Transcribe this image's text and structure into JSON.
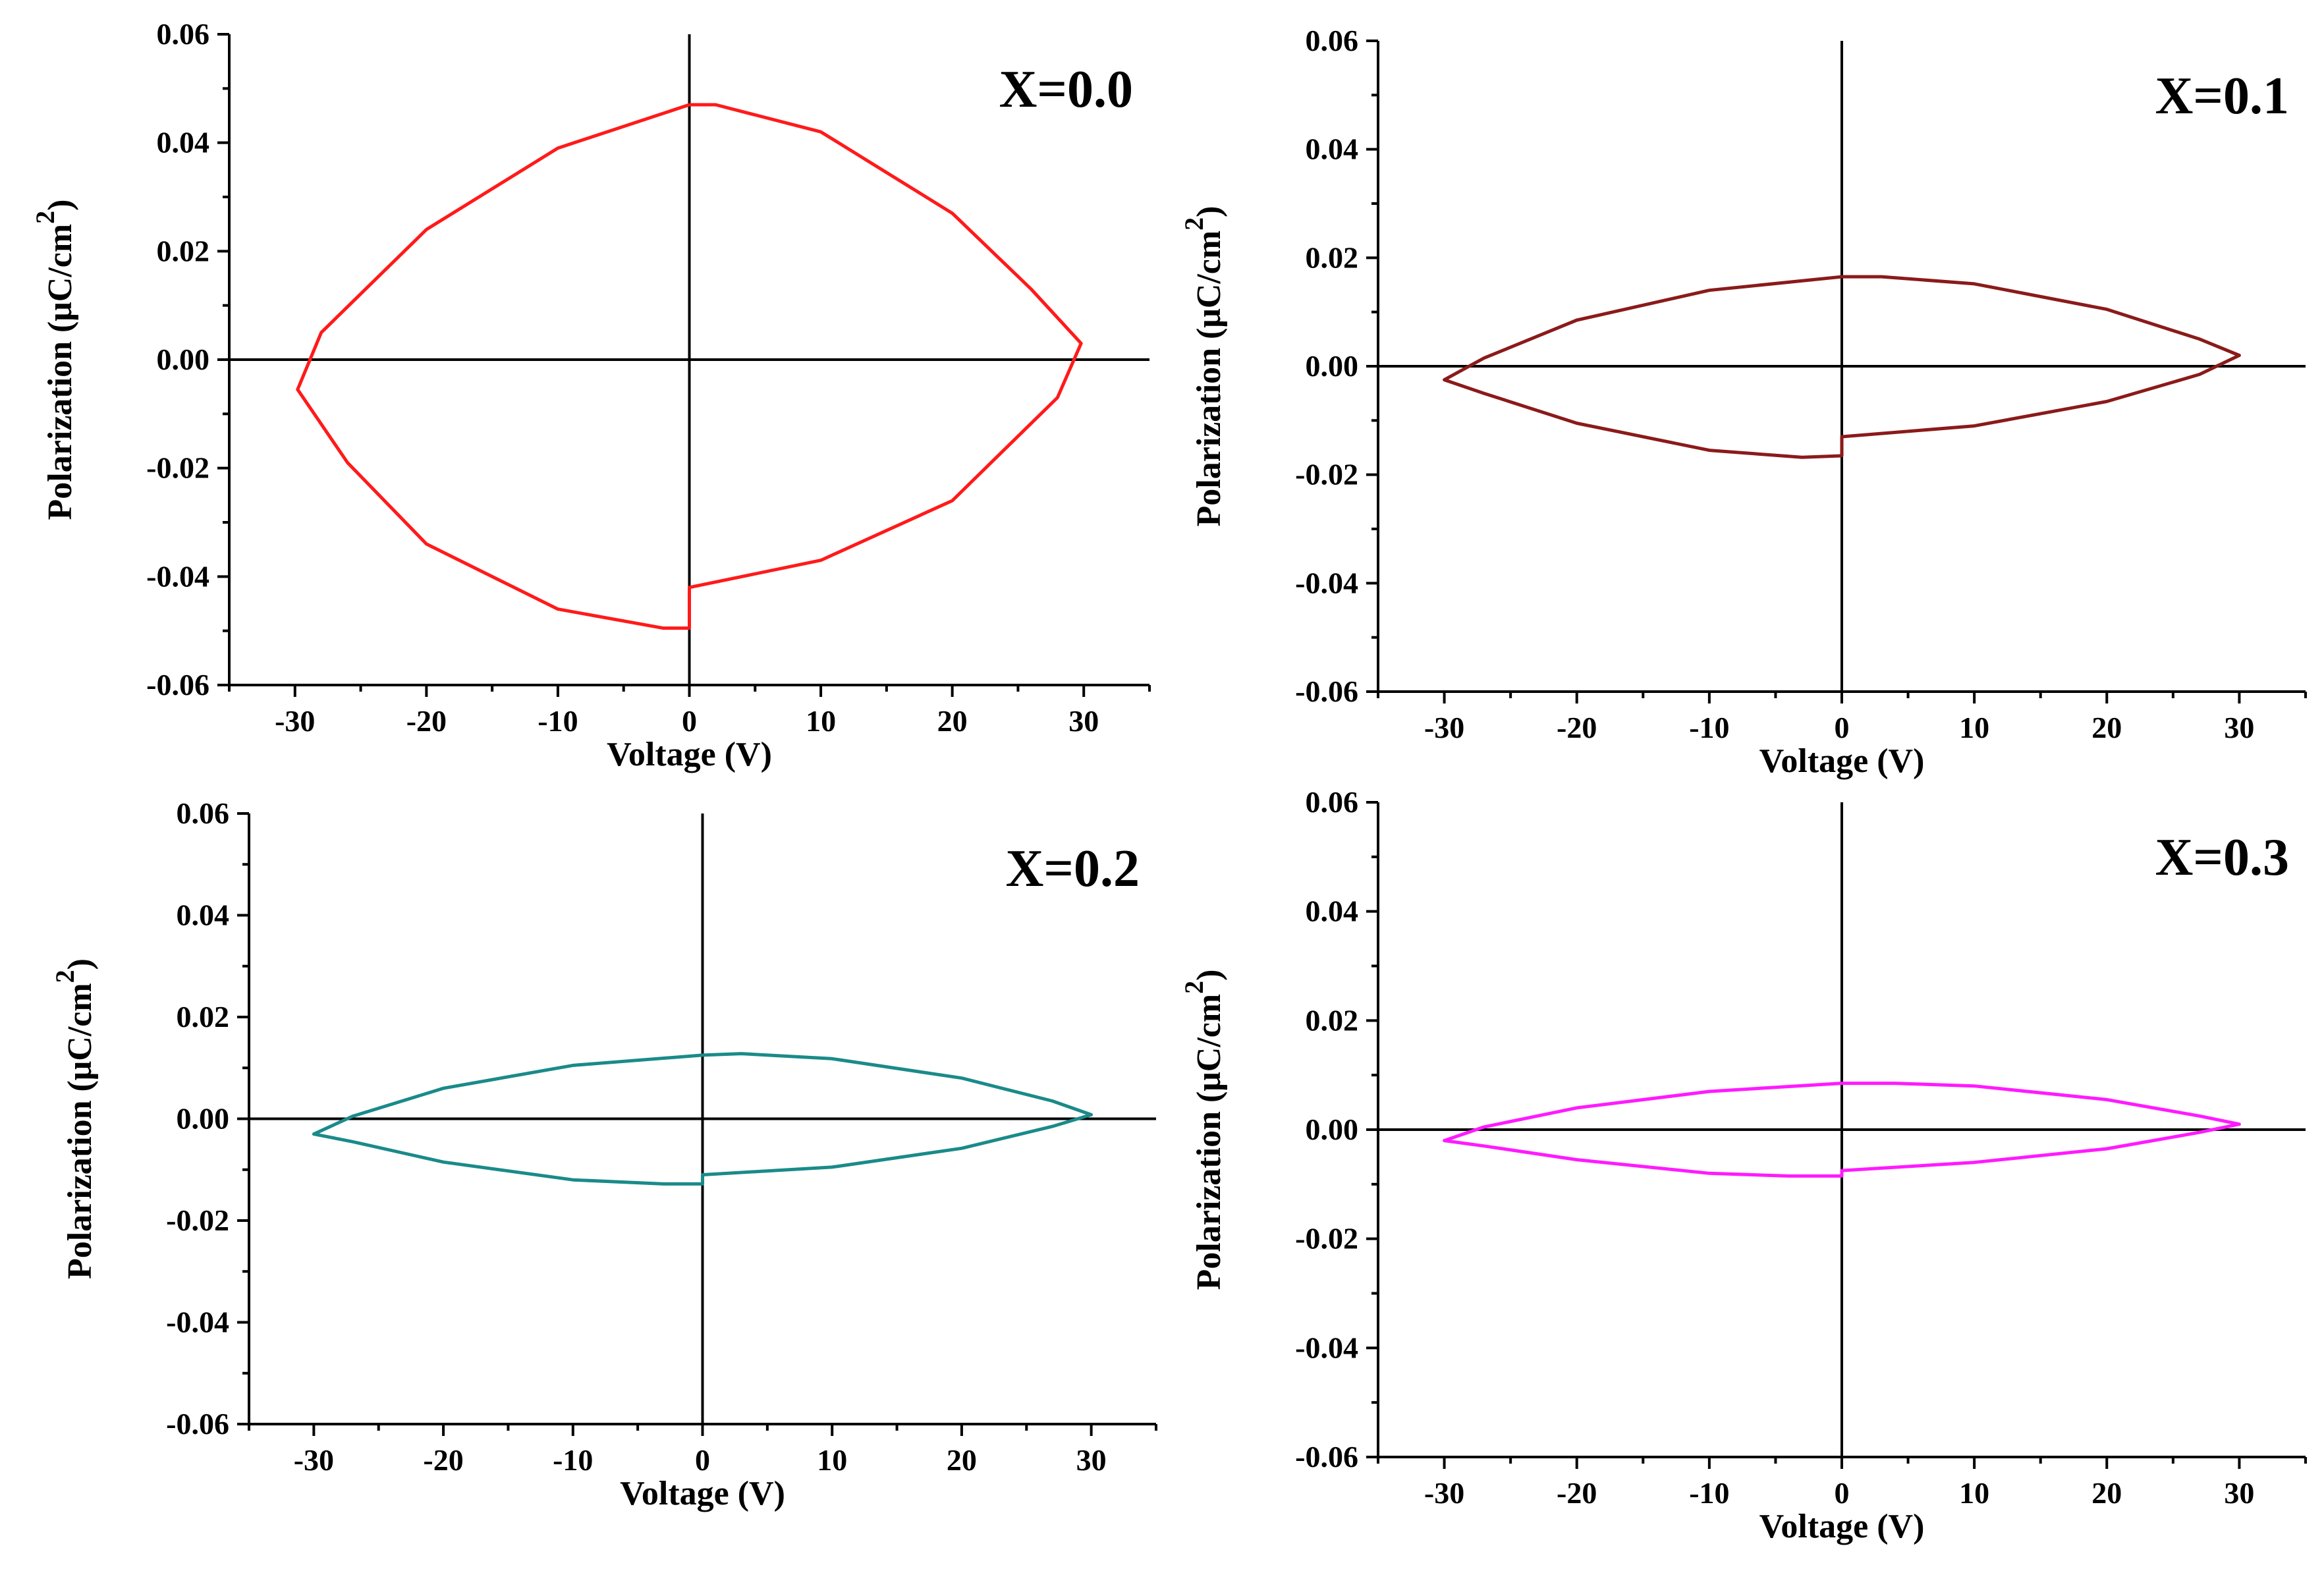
{
  "chart_data": [
    {
      "type": "line",
      "panel_label": "X=0.0",
      "xlabel": "Voltage (V)",
      "ylabel": "Polarization (μC/cm",
      "ylabel_sup": "2",
      "ylabel_close": ")",
      "xlim": [
        -35,
        35
      ],
      "ylim": [
        -0.06,
        0.06
      ],
      "x_ticks": [
        -30,
        -20,
        -10,
        0,
        10,
        20,
        30
      ],
      "x_tick_labels": [
        "-30",
        "-20",
        "-10",
        "0",
        "10",
        "20",
        "30"
      ],
      "y_ticks": [
        0.06,
        0.04,
        0.02,
        0.0,
        -0.02,
        -0.04,
        -0.06
      ],
      "y_tick_labels": [
        "0.06",
        "0.04",
        "0.02",
        "0.00",
        "-0.02",
        "-0.04",
        "-0.06"
      ],
      "color": "#ff1a1a",
      "series": [
        {
          "name": "loop",
          "x": [
            0,
            2,
            10,
            20,
            26,
            29.8,
            28,
            20,
            10,
            0,
            0,
            -2,
            -10,
            -20,
            -26,
            -29.8,
            -28,
            -20,
            -10,
            0
          ],
          "y": [
            0.047,
            0.047,
            0.042,
            0.027,
            0.013,
            0.003,
            -0.007,
            -0.026,
            -0.037,
            -0.042,
            -0.0495,
            -0.0495,
            -0.046,
            -0.034,
            -0.019,
            -0.0055,
            0.005,
            0.024,
            0.039,
            0.047
          ]
        }
      ]
    },
    {
      "type": "line",
      "panel_label": "X=0.1",
      "xlabel": "Voltage (V)",
      "ylabel": "Polarization (μC/cm",
      "ylabel_sup": "2",
      "ylabel_close": ")",
      "xlim": [
        -35,
        35
      ],
      "ylim": [
        -0.06,
        0.06
      ],
      "x_ticks": [
        -30,
        -20,
        -10,
        0,
        10,
        20,
        30
      ],
      "x_tick_labels": [
        "-30",
        "-20",
        "-10",
        "0",
        "10",
        "20",
        "30"
      ],
      "y_ticks": [
        0.06,
        0.04,
        0.02,
        0.0,
        -0.02,
        -0.04,
        -0.06
      ],
      "y_tick_labels": [
        "0.06",
        "0.04",
        "0.02",
        "0.00",
        "-0.02",
        "-0.04",
        "-0.06"
      ],
      "color": "#8b1a1a",
      "series": [
        {
          "name": "loop",
          "x": [
            0,
            3,
            10,
            20,
            27,
            30,
            27,
            20,
            10,
            0,
            0,
            -3,
            -10,
            -20,
            -27,
            -30,
            -27,
            -20,
            -10,
            0
          ],
          "y": [
            0.0165,
            0.0165,
            0.0152,
            0.0105,
            0.005,
            0.002,
            -0.0015,
            -0.0065,
            -0.011,
            -0.013,
            -0.0165,
            -0.0168,
            -0.0155,
            -0.0105,
            -0.005,
            -0.0025,
            0.0015,
            0.0085,
            0.014,
            0.0165
          ]
        }
      ]
    },
    {
      "type": "line",
      "panel_label": "X=0.2",
      "xlabel": "Voltage (V)",
      "ylabel": "Polarization (μC/cm",
      "ylabel_sup": "2",
      "ylabel_close": ")",
      "xlim": [
        -35,
        35
      ],
      "ylim": [
        -0.06,
        0.06
      ],
      "x_ticks": [
        -30,
        -20,
        -10,
        0,
        10,
        20,
        30
      ],
      "x_tick_labels": [
        "-30",
        "-20",
        "-10",
        "0",
        "10",
        "20",
        "30"
      ],
      "y_ticks": [
        0.06,
        0.04,
        0.02,
        0.0,
        -0.02,
        -0.04,
        -0.06
      ],
      "y_tick_labels": [
        "0.06",
        "0.04",
        "0.02",
        "0.00",
        "-0.02",
        "-0.04",
        "-0.06"
      ],
      "color": "#1a8a8a",
      "series": [
        {
          "name": "loop",
          "x": [
            0,
            3,
            10,
            20,
            27,
            30,
            27,
            20,
            10,
            0,
            0,
            -3,
            -10,
            -20,
            -27,
            -30,
            -27,
            -20,
            -10,
            0
          ],
          "y": [
            0.0125,
            0.0128,
            0.0118,
            0.008,
            0.0035,
            0.0008,
            -0.0015,
            -0.0058,
            -0.0095,
            -0.011,
            -0.0128,
            -0.0128,
            -0.012,
            -0.0085,
            -0.0045,
            -0.003,
            0.0005,
            0.006,
            0.0105,
            0.0125
          ]
        }
      ]
    },
    {
      "type": "line",
      "panel_label": "X=0.3",
      "xlabel": "Voltage (V)",
      "ylabel": "Polarization (μC/cm",
      "ylabel_sup": "2",
      "ylabel_close": ")",
      "xlim": [
        -35,
        35
      ],
      "ylim": [
        -0.06,
        0.06
      ],
      "x_ticks": [
        -30,
        -20,
        -10,
        0,
        10,
        20,
        30
      ],
      "x_tick_labels": [
        "-30",
        "-20",
        "-10",
        "0",
        "10",
        "20",
        "30"
      ],
      "y_ticks": [
        0.06,
        0.04,
        0.02,
        0.0,
        -0.02,
        -0.04,
        -0.06
      ],
      "y_tick_labels": [
        "0.06",
        "0.04",
        "0.02",
        "0.00",
        "-0.02",
        "-0.04",
        "-0.06"
      ],
      "color": "#ff1aff",
      "series": [
        {
          "name": "loop",
          "x": [
            0,
            4,
            10,
            20,
            27,
            30,
            27,
            20,
            10,
            0,
            0,
            -4,
            -10,
            -20,
            -27,
            -30,
            -27,
            -20,
            -10,
            0
          ],
          "y": [
            0.0085,
            0.0085,
            0.008,
            0.0055,
            0.0025,
            0.001,
            -0.0005,
            -0.0035,
            -0.006,
            -0.0075,
            -0.0085,
            -0.0085,
            -0.008,
            -0.0055,
            -0.003,
            -0.002,
            0.0005,
            0.004,
            0.007,
            0.0085
          ]
        }
      ]
    }
  ]
}
